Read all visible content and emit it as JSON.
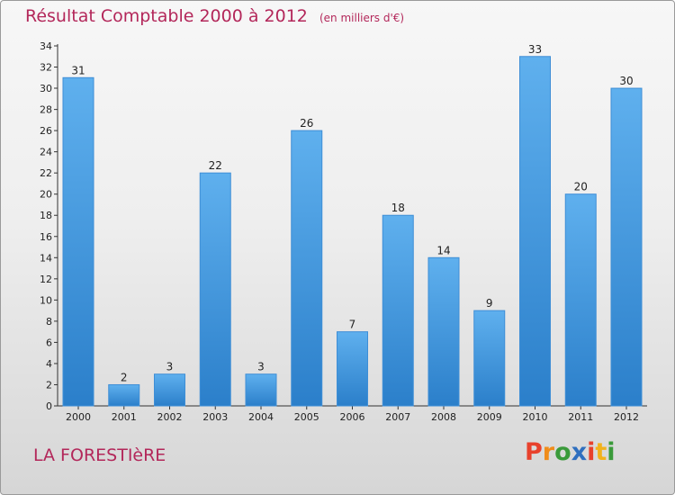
{
  "chart_data": {
    "type": "bar",
    "title": "Résultat Comptable 2000 à 2012",
    "subtitle": "(en milliers d'€)",
    "categories": [
      "2000",
      "2001",
      "2002",
      "2003",
      "2004",
      "2005",
      "2006",
      "2007",
      "2008",
      "2009",
      "2010",
      "2011",
      "2012"
    ],
    "values": [
      31,
      2,
      3,
      22,
      3,
      26,
      7,
      18,
      14,
      9,
      33,
      20,
      30
    ],
    "ylim": [
      0,
      34
    ],
    "yticks": [
      0,
      2,
      4,
      6,
      8,
      10,
      12,
      14,
      16,
      18,
      20,
      22,
      24,
      26,
      28,
      30,
      32,
      34
    ],
    "xlabel": "",
    "ylabel": "",
    "grid": false,
    "bar_color": "#4a9de0"
  },
  "footer": {
    "location": "LA FORESTIèRE",
    "brand": "Proxiti"
  },
  "colors": {
    "title": "#b3275a",
    "brand_letters": [
      "#e8412c",
      "#f08c1a",
      "#3a9a3a",
      "#2f6fbf",
      "#e8412c",
      "#f2b21c",
      "#3a9a3a"
    ]
  }
}
